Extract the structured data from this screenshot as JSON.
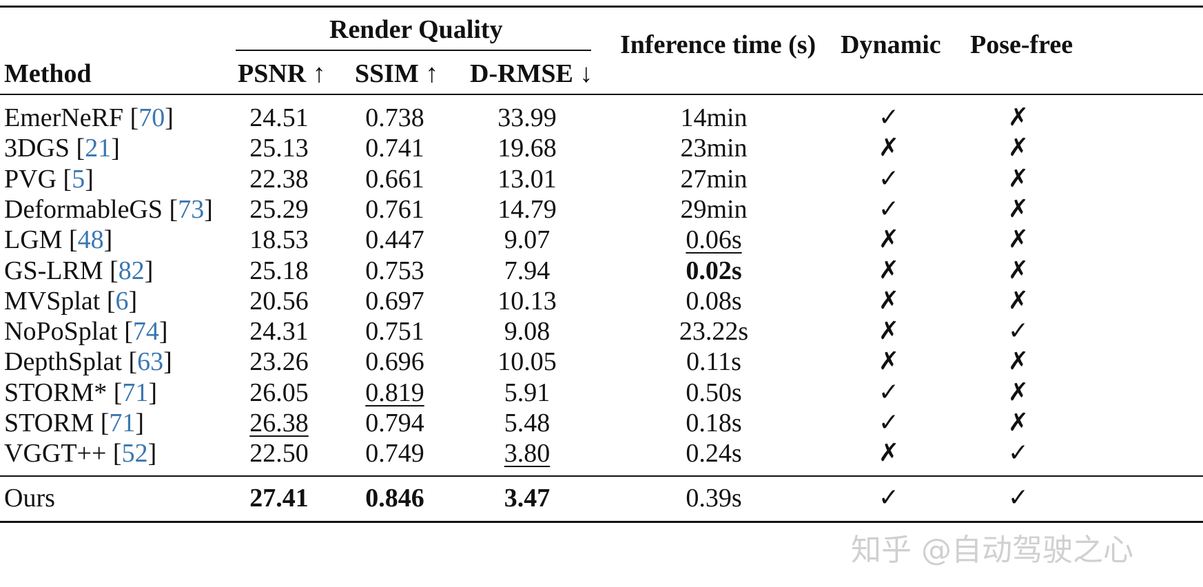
{
  "header": {
    "group_label": "Render Quality",
    "method_label": "Method",
    "psnr_label": "PSNR ↑",
    "ssim_label": "SSIM ↑",
    "drmse_label": "D-RMSE ↓",
    "time_label": "Inference time (s)",
    "dynamic_label": "Dynamic",
    "posefree_label": "Pose-free"
  },
  "rows": [
    {
      "name": "EmerNeRF",
      "ref": "70",
      "psnr": "24.51",
      "ssim": "0.738",
      "drmse": "33.99",
      "time": "14min",
      "dynamic": "✓",
      "posefree": "✗"
    },
    {
      "name": "3DGS",
      "ref": "21",
      "psnr": "25.13",
      "ssim": "0.741",
      "drmse": "19.68",
      "time": "23min",
      "dynamic": "✗",
      "posefree": "✗"
    },
    {
      "name": "PVG",
      "ref": "5",
      "psnr": "22.38",
      "ssim": "0.661",
      "drmse": "13.01",
      "time": "27min",
      "dynamic": "✓",
      "posefree": "✗"
    },
    {
      "name": "DeformableGS",
      "ref": "73",
      "psnr": "25.29",
      "ssim": "0.761",
      "drmse": "14.79",
      "time": "29min",
      "dynamic": "✓",
      "posefree": "✗"
    },
    {
      "name": "LGM",
      "ref": "48",
      "psnr": "18.53",
      "ssim": "0.447",
      "drmse": "9.07",
      "time": "0.06s",
      "dynamic": "✗",
      "posefree": "✗",
      "time_style": "underline"
    },
    {
      "name": "GS-LRM",
      "ref": "82",
      "psnr": "25.18",
      "ssim": "0.753",
      "drmse": "7.94",
      "time": "0.02s",
      "dynamic": "✗",
      "posefree": "✗",
      "time_style": "bold"
    },
    {
      "name": "MVSplat",
      "ref": "6",
      "psnr": "20.56",
      "ssim": "0.697",
      "drmse": "10.13",
      "time": "0.08s",
      "dynamic": "✗",
      "posefree": "✗"
    },
    {
      "name": "NoPoSplat",
      "ref": "74",
      "psnr": "24.31",
      "ssim": "0.751",
      "drmse": "9.08",
      "time": "23.22s",
      "dynamic": "✗",
      "posefree": "✓"
    },
    {
      "name": "DepthSplat",
      "ref": "63",
      "psnr": "23.26",
      "ssim": "0.696",
      "drmse": "10.05",
      "time": "0.11s",
      "dynamic": "✗",
      "posefree": "✗"
    },
    {
      "name": "STORM*",
      "ref": "71",
      "psnr": "26.05",
      "ssim": "0.819",
      "drmse": "5.91",
      "time": "0.50s",
      "dynamic": "✓",
      "posefree": "✗",
      "ssim_style": "underline"
    },
    {
      "name": "STORM",
      "ref": "71",
      "psnr": "26.38",
      "ssim": "0.794",
      "drmse": "5.48",
      "time": "0.18s",
      "dynamic": "✓",
      "posefree": "✗",
      "psnr_style": "underline"
    },
    {
      "name": "VGGT++",
      "ref": "52",
      "psnr": "22.50",
      "ssim": "0.749",
      "drmse": "3.80",
      "time": "0.24s",
      "dynamic": "✗",
      "posefree": "✓",
      "drmse_style": "underline"
    }
  ],
  "ours": {
    "name": "Ours",
    "psnr": "27.41",
    "ssim": "0.846",
    "drmse": "3.47",
    "time": "0.39s",
    "dynamic": "✓",
    "posefree": "✓"
  },
  "watermark": "知乎 @自动驾驶之心"
}
